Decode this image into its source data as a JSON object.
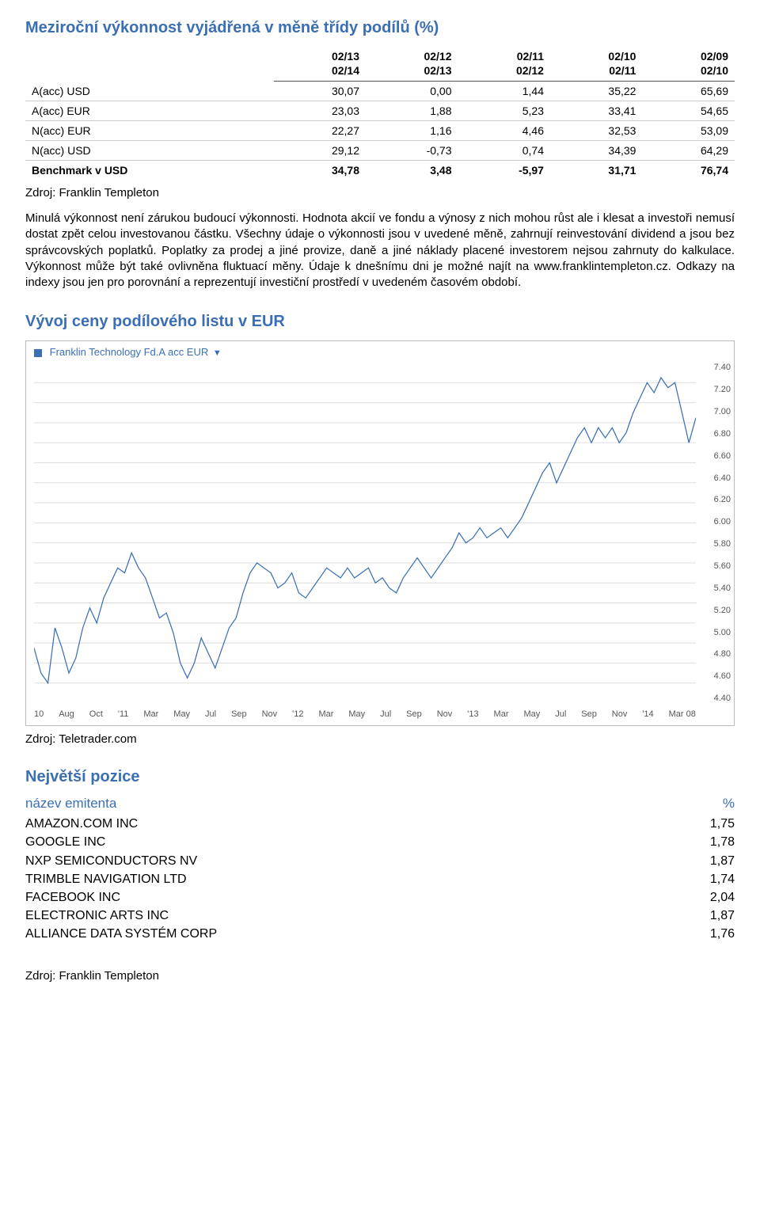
{
  "perf": {
    "title": "Meziroční výkonnost vyjádřená v měně třídy podílů (%)",
    "columns": [
      {
        "l1": "",
        "l2": ""
      },
      {
        "l1": "02/13",
        "l2": "02/14"
      },
      {
        "l1": "02/12",
        "l2": "02/13"
      },
      {
        "l1": "02/11",
        "l2": "02/12"
      },
      {
        "l1": "02/10",
        "l2": "02/11"
      },
      {
        "l1": "02/09",
        "l2": "02/10"
      }
    ],
    "rows": [
      {
        "label": "A(acc) USD",
        "v": [
          "30,07",
          "0,00",
          "1,44",
          "35,22",
          "65,69"
        ]
      },
      {
        "label": "A(acc) EUR",
        "v": [
          "23,03",
          "1,88",
          "5,23",
          "33,41",
          "54,65"
        ]
      },
      {
        "label": "N(acc) EUR",
        "v": [
          "22,27",
          "1,16",
          "4,46",
          "32,53",
          "53,09"
        ]
      },
      {
        "label": "N(acc) USD",
        "v": [
          "29,12",
          "-0,73",
          "0,74",
          "34,39",
          "64,29"
        ]
      },
      {
        "label": "Benchmark v USD",
        "v": [
          "34,78",
          "3,48",
          "-5,97",
          "31,71",
          "76,74"
        ]
      }
    ],
    "source": "Zdroj: Franklin Templeton"
  },
  "disclaimer": "Minulá výkonnost není zárukou budoucí výkonnosti. Hodnota akcií ve fondu a výnosy z nich mohou růst ale i klesat a investoři nemusí dostat zpět celou investovanou částku. Všechny údaje o výkonnosti jsou v uvedené měně, zahrnují reinvestování dividend a jsou bez správcovských poplatků. Poplatky za prodej a jiné provize, daně a jiné náklady placené investorem nejsou zahrnuty do kalkulace. Výkonnost může být také ovlivněna fluktuací měny. Údaje k dnešnímu dni je možné najít na www.franklintempleton.cz. Odkazy na indexy jsou jen pro porovnání a reprezentují investiční prostředí v uvedeném časovém období.",
  "chart": {
    "title": "Vývoj ceny podílového listu v EUR",
    "legend": "Franklin Technology Fd.A acc EUR",
    "ylim": [
      4.2,
      7.6
    ],
    "ytick_step": 0.2,
    "yticks": [
      "7.40",
      "7.20",
      "7.00",
      "6.80",
      "6.60",
      "6.40",
      "6.20",
      "6.00",
      "5.80",
      "5.60",
      "5.40",
      "5.20",
      "5.00",
      "4.80",
      "4.60",
      "4.40"
    ],
    "xticks": [
      "10",
      "Aug",
      "Oct",
      "'11",
      "Mar",
      "May",
      "Jul",
      "Sep",
      "Nov",
      "'12",
      "Mar",
      "May",
      "Jul",
      "Sep",
      "Nov",
      "'13",
      "Mar",
      "May",
      "Jul",
      "Sep",
      "Nov",
      "'14",
      "Mar 08"
    ],
    "line_color": "#3b6fb5",
    "grid_color": "#dddddd",
    "background": "#ffffff",
    "series": [
      4.75,
      4.5,
      4.4,
      4.95,
      4.75,
      4.5,
      4.65,
      4.95,
      5.15,
      5.0,
      5.25,
      5.4,
      5.55,
      5.5,
      5.7,
      5.55,
      5.45,
      5.25,
      5.05,
      5.1,
      4.9,
      4.6,
      4.45,
      4.6,
      4.85,
      4.7,
      4.55,
      4.75,
      4.95,
      5.05,
      5.3,
      5.5,
      5.6,
      5.55,
      5.5,
      5.35,
      5.4,
      5.5,
      5.3,
      5.25,
      5.35,
      5.45,
      5.55,
      5.5,
      5.45,
      5.55,
      5.45,
      5.5,
      5.55,
      5.4,
      5.45,
      5.35,
      5.3,
      5.45,
      5.55,
      5.65,
      5.55,
      5.45,
      5.55,
      5.65,
      5.75,
      5.9,
      5.8,
      5.85,
      5.95,
      5.85,
      5.9,
      5.95,
      5.85,
      5.95,
      6.05,
      6.2,
      6.35,
      6.5,
      6.6,
      6.4,
      6.55,
      6.7,
      6.85,
      6.95,
      6.8,
      6.95,
      6.85,
      6.95,
      6.8,
      6.9,
      7.1,
      7.25,
      7.4,
      7.3,
      7.45,
      7.35,
      7.4,
      7.1,
      6.8,
      7.05
    ],
    "source": "Zdroj: Teletrader.com"
  },
  "holdings": {
    "title": "Největší pozice",
    "header_name": "název emitenta",
    "header_pct": "%",
    "rows": [
      {
        "name": "AMAZON.COM INC",
        "pct": "1,75"
      },
      {
        "name": "GOOGLE INC",
        "pct": "1,78"
      },
      {
        "name": "NXP SEMICONDUCTORS NV",
        "pct": "1,87"
      },
      {
        "name": "TRIMBLE NAVIGATION LTD",
        "pct": "1,74"
      },
      {
        "name": "FACEBOOK INC",
        "pct": "2,04"
      },
      {
        "name": "ELECTRONIC ARTS INC",
        "pct": "1,87"
      },
      {
        "name": "ALLIANCE DATA SYSTÉM CORP",
        "pct": "1,76"
      }
    ],
    "source": "Zdroj: Franklin Templeton"
  }
}
